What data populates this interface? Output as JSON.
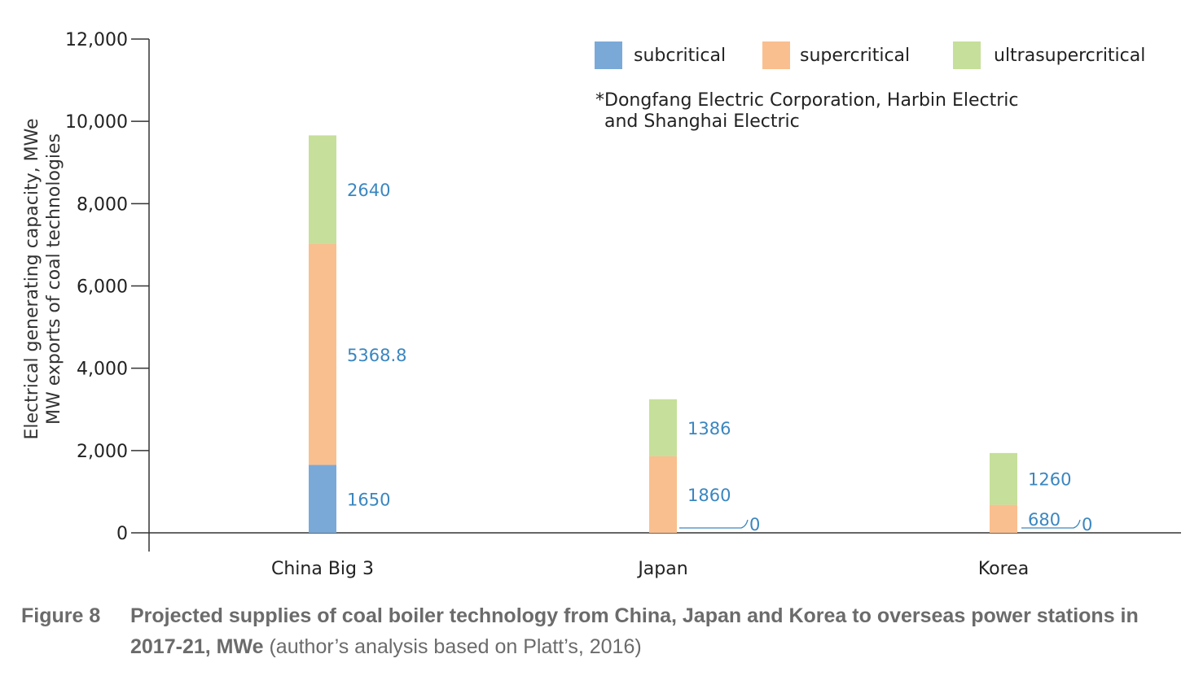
{
  "chart_data": {
    "type": "bar",
    "stacked": true,
    "categories": [
      "China Big 3",
      "Japan",
      "Korea"
    ],
    "series": [
      {
        "name": "subcritical",
        "color": "#7aa9d8",
        "values": [
          1650,
          0,
          0
        ]
      },
      {
        "name": "supercritical",
        "color": "#f9bf8f",
        "values": [
          5368.8,
          1860,
          680
        ]
      },
      {
        "name": "ultrasupercritical",
        "color": "#c6df9a",
        "values": [
          2640,
          1386,
          1260
        ]
      }
    ],
    "data_labels": [
      [
        "1650",
        "0",
        "0"
      ],
      [
        "5368.8",
        "1860",
        "680"
      ],
      [
        "2640",
        "1386",
        "1260"
      ]
    ],
    "ylabel_lines": [
      "Electrical generating capacity, MWe",
      "MW exports of coal technologies"
    ],
    "ylim": [
      0,
      12000
    ],
    "yticks": [
      0,
      2000,
      4000,
      6000,
      8000,
      10000,
      12000
    ],
    "ytick_labels": [
      "0",
      "2,000",
      "4,000",
      "6,000",
      "8,000",
      "10,000",
      "12,000"
    ],
    "legend_placement": "top-right",
    "note_lines": [
      "*Dongfang Electric Corporation, Harbin Electric",
      "and Shanghai Electric"
    ],
    "label_color": "#3a86c0",
    "grid": false
  },
  "caption": {
    "number": "Figure 8",
    "title": "Projected supplies of coal boiler technology from China, Japan and Korea to overseas power stations in 2017-21, MWe",
    "source": " (author’s analysis based on Platt’s, 2016)"
  }
}
